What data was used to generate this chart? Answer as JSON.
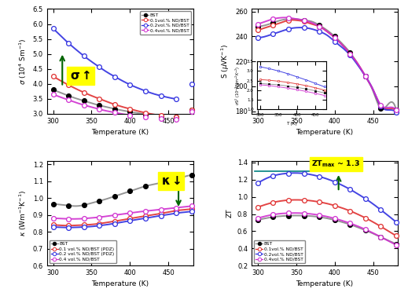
{
  "temp": [
    300,
    310,
    320,
    330,
    340,
    350,
    360,
    370,
    380,
    390,
    400,
    410,
    420,
    430,
    440,
    450,
    460,
    470,
    480
  ],
  "sigma_BST": [
    3.8,
    3.7,
    3.6,
    3.51,
    3.43,
    3.35,
    3.28,
    3.22,
    3.16,
    3.11,
    3.06,
    3.02,
    2.98,
    2.95,
    2.92,
    2.9,
    2.89,
    3.1,
    3.12
  ],
  "sigma_01": [
    4.25,
    4.1,
    3.96,
    3.83,
    3.71,
    3.6,
    3.5,
    3.4,
    3.31,
    3.23,
    3.16,
    3.09,
    3.03,
    2.98,
    2.94,
    2.91,
    2.89,
    3.11,
    3.13
  ],
  "sigma_02": [
    5.85,
    5.6,
    5.36,
    5.14,
    4.93,
    4.74,
    4.56,
    4.39,
    4.24,
    4.1,
    3.97,
    3.86,
    3.76,
    3.67,
    3.6,
    3.54,
    3.49,
    3.95,
    4.0
  ],
  "sigma_04": [
    3.65,
    3.55,
    3.46,
    3.37,
    3.29,
    3.22,
    3.15,
    3.09,
    3.04,
    2.99,
    2.95,
    2.91,
    2.88,
    2.86,
    2.84,
    2.82,
    2.81,
    3.05,
    3.07
  ],
  "S_BST": [
    248,
    249,
    251,
    253,
    254,
    254,
    253,
    252,
    249,
    245,
    240,
    234,
    227,
    218,
    208,
    196,
    182,
    186,
    181
  ],
  "S_01": [
    245,
    247,
    249,
    251,
    253,
    253,
    252,
    250,
    248,
    244,
    239,
    233,
    226,
    218,
    208,
    197,
    184,
    182,
    180
  ],
  "S_02": [
    239,
    240,
    242,
    244,
    246,
    247,
    247,
    246,
    244,
    241,
    236,
    231,
    225,
    217,
    208,
    197,
    184,
    181,
    179
  ],
  "S_04": [
    250,
    252,
    254,
    255,
    255,
    254,
    253,
    251,
    248,
    244,
    239,
    233,
    226,
    218,
    208,
    197,
    185,
    183,
    181
  ],
  "kappa_BST": [
    0.965,
    0.96,
    0.955,
    0.952,
    0.958,
    0.97,
    0.982,
    0.995,
    1.01,
    1.025,
    1.04,
    1.055,
    1.07,
    1.08,
    1.09,
    1.1,
    1.11,
    1.125,
    1.135
  ],
  "kappa_01": [
    0.84,
    0.838,
    0.836,
    0.838,
    0.84,
    0.843,
    0.848,
    0.855,
    0.862,
    0.87,
    0.878,
    0.886,
    0.893,
    0.9,
    0.908,
    0.916,
    0.925,
    0.93,
    0.935
  ],
  "kappa_02": [
    0.828,
    0.826,
    0.825,
    0.826,
    0.828,
    0.831,
    0.836,
    0.842,
    0.849,
    0.857,
    0.865,
    0.873,
    0.88,
    0.888,
    0.895,
    0.902,
    0.91,
    0.915,
    0.92
  ],
  "kappa_04": [
    0.88,
    0.878,
    0.876,
    0.876,
    0.878,
    0.882,
    0.886,
    0.892,
    0.898,
    0.905,
    0.911,
    0.917,
    0.922,
    0.927,
    0.932,
    0.937,
    0.942,
    0.947,
    0.952
  ],
  "ZT_BST": [
    0.73,
    0.75,
    0.765,
    0.775,
    0.78,
    0.782,
    0.78,
    0.775,
    0.765,
    0.75,
    0.73,
    0.705,
    0.678,
    0.645,
    0.61,
    0.572,
    0.53,
    0.49,
    0.45
  ],
  "ZT_01": [
    0.88,
    0.91,
    0.935,
    0.952,
    0.962,
    0.965,
    0.962,
    0.954,
    0.94,
    0.922,
    0.898,
    0.869,
    0.836,
    0.797,
    0.754,
    0.706,
    0.654,
    0.6,
    0.545
  ],
  "ZT_02": [
    1.16,
    1.21,
    1.245,
    1.265,
    1.275,
    1.278,
    1.272,
    1.258,
    1.237,
    1.209,
    1.175,
    1.134,
    1.087,
    1.034,
    0.978,
    0.916,
    0.848,
    0.778,
    0.705
  ],
  "ZT_04": [
    0.75,
    0.775,
    0.793,
    0.805,
    0.81,
    0.812,
    0.808,
    0.8,
    0.787,
    0.77,
    0.748,
    0.722,
    0.692,
    0.658,
    0.62,
    0.578,
    0.532,
    0.485,
    0.44
  ],
  "inset_temp": [
    300,
    325,
    350,
    375,
    400,
    425,
    450,
    475
  ],
  "inset_BST": [
    2.35,
    2.32,
    2.28,
    2.22,
    2.15,
    2.07,
    1.97,
    1.86
  ],
  "inset_01": [
    2.55,
    2.52,
    2.47,
    2.41,
    2.33,
    2.24,
    2.13,
    2.01
  ],
  "inset_02": [
    3.22,
    3.12,
    3.0,
    2.86,
    2.7,
    2.54,
    2.36,
    2.18
  ],
  "inset_04": [
    2.28,
    2.24,
    2.18,
    2.11,
    2.03,
    1.94,
    1.84,
    1.73
  ],
  "color_BST": "#000000",
  "color_01": "#e03030",
  "color_02": "#3030e0",
  "color_04": "#d030d0",
  "color_BST_curve": "#888888",
  "label_BST": "BST",
  "label_01": "0.1vol.% ND/BST",
  "label_02": "0.2vol.% ND/BST",
  "label_04": "0.4vol.% ND/BST",
  "label_01k": "0.1 vol.% ND/BST (PDZ)",
  "label_02k": "0.2 vol.% ND/BST (PDZ)",
  "label_04k": "0.4 vol.% ND/BST"
}
